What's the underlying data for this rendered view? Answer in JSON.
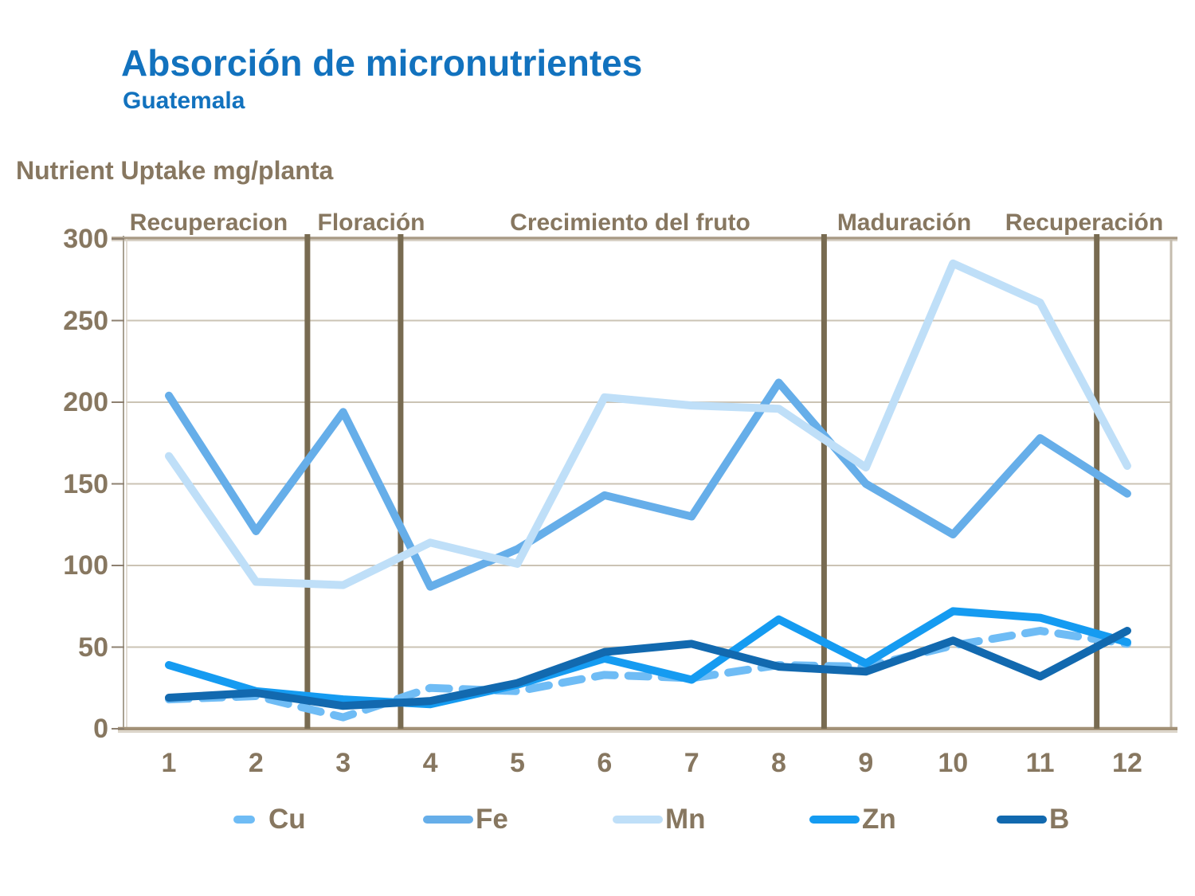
{
  "header": {
    "title": "Absorción de micronutrientes",
    "subtitle": "Guatemala"
  },
  "axis_title": "Nutrient Uptake mg/planta",
  "phases": [
    "Recuperacion",
    "Floración",
    "Crecimiento del fruto",
    "Maduración",
    "Recuperación"
  ],
  "chart_data": {
    "type": "line",
    "title": "Absorción de micronutrientes",
    "subtitle": "Guatemala",
    "ylabel": "Nutrient Uptake mg/planta",
    "xlabel": "",
    "x": [
      1,
      2,
      3,
      4,
      5,
      6,
      7,
      8,
      9,
      10,
      11,
      12
    ],
    "series": [
      {
        "name": "Cu",
        "color": "#6FBCF5",
        "dashed": true,
        "values": [
          18,
          20,
          7,
          25,
          23,
          33,
          31,
          39,
          38,
          51,
          60,
          52
        ]
      },
      {
        "name": "Fe",
        "color": "#66AEE9",
        "dashed": false,
        "values": [
          204,
          121,
          194,
          87,
          110,
          143,
          130,
          212,
          150,
          119,
          178,
          144
        ]
      },
      {
        "name": "Mn",
        "color": "#BFDFF8",
        "dashed": false,
        "values": [
          167,
          90,
          88,
          114,
          101,
          203,
          198,
          196,
          160,
          285,
          261,
          161
        ]
      },
      {
        "name": "Zn",
        "color": "#159BF1",
        "dashed": false,
        "values": [
          39,
          23,
          18,
          15,
          27,
          43,
          30,
          67,
          40,
          72,
          68,
          53
        ]
      },
      {
        "name": "B",
        "color": "#1269AF",
        "dashed": false,
        "values": [
          19,
          22,
          14,
          17,
          28,
          47,
          52,
          38,
          35,
          54,
          32,
          60
        ]
      }
    ],
    "ylim": [
      0,
      300
    ],
    "yticks": [
      0,
      50,
      100,
      150,
      200,
      250,
      300
    ],
    "phase_boundaries_x": [
      2.59,
      3.66,
      8.52,
      11.65
    ],
    "grid": true,
    "legend_position": "bottom"
  },
  "colors": {
    "title_blue": "#1272BE",
    "label_brown": "#877760",
    "gridline": "#CBC3B4",
    "top_border_dark": "#A89A85",
    "top_border_light": "#D9D2C6",
    "bottom_axis": "#A29177",
    "left_axis": "#A9A192",
    "right_border": "#C4BCAE",
    "phase_divider": "#786B51",
    "tick": "#8D8070"
  }
}
